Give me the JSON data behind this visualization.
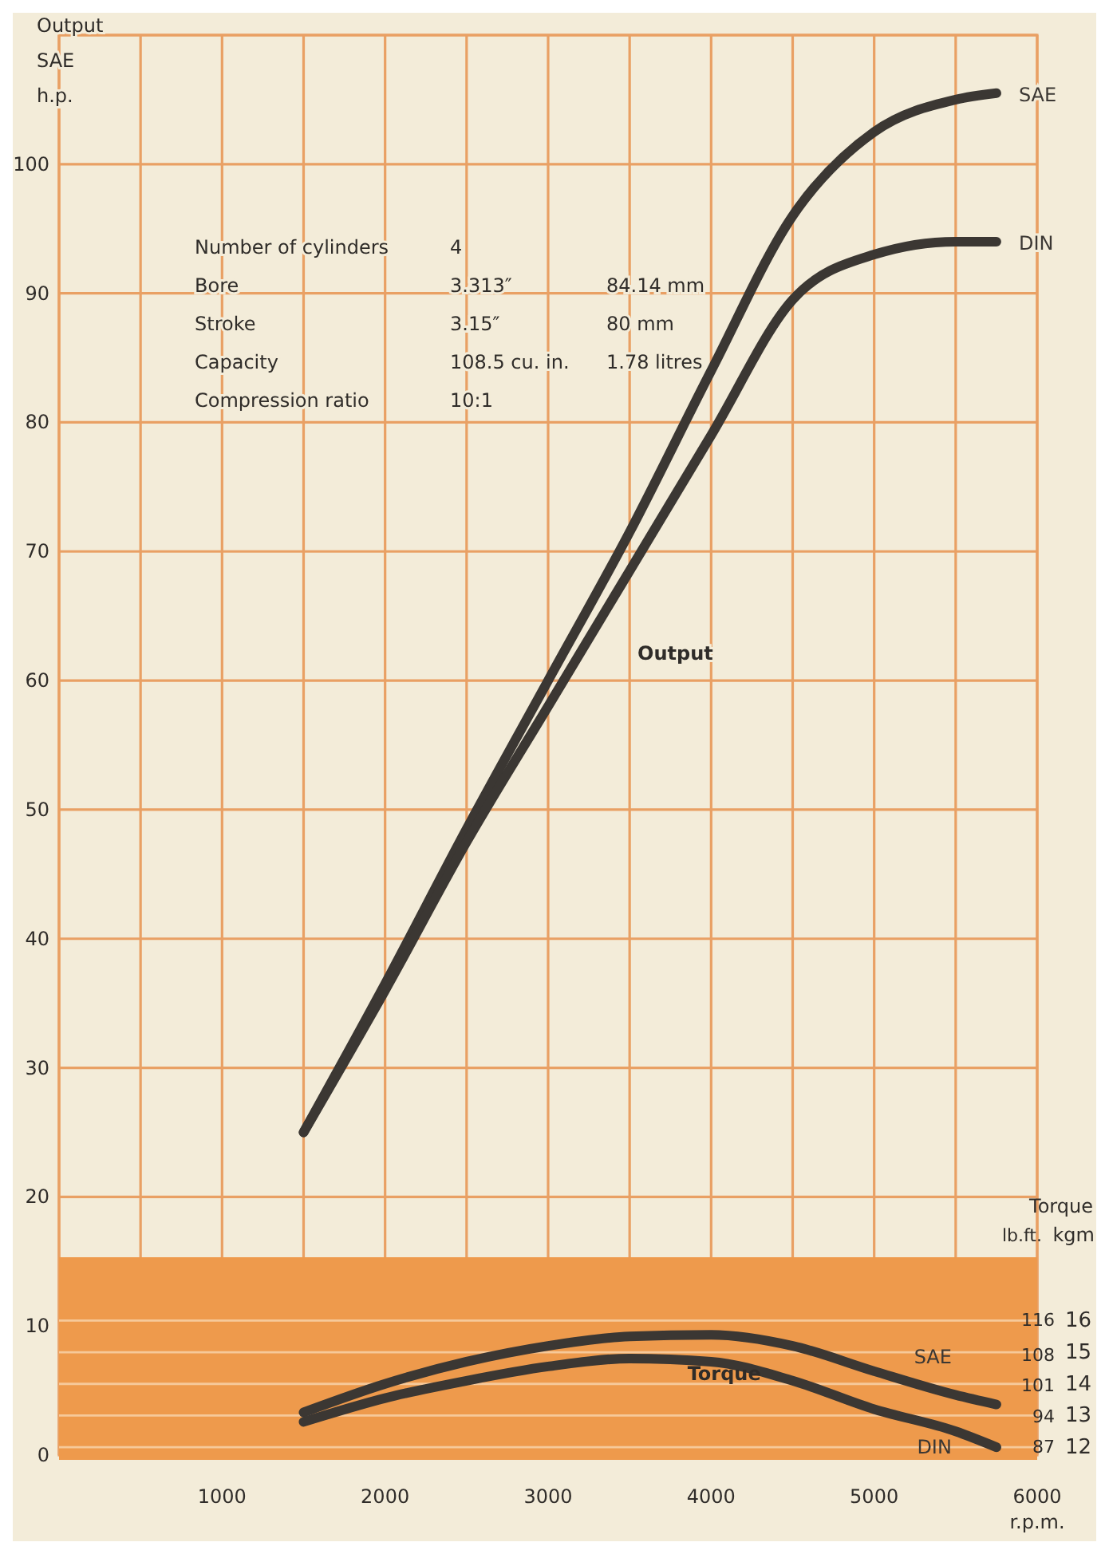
{
  "chart_data": [
    {
      "type": "line",
      "ylabel": "Output\nSAE\nh.p.",
      "xlabel": "r.p.m.",
      "xlim": [
        0,
        6000
      ],
      "ylim": [
        0,
        110
      ],
      "xticks": [
        {
          "value": 0,
          "label": null
        },
        {
          "value": 500,
          "label": null
        },
        1000,
        {
          "value": 1500,
          "label": null
        },
        2000,
        {
          "value": 2500,
          "label": null
        },
        3000,
        {
          "value": 3500,
          "label": null
        },
        4000,
        {
          "value": 4500,
          "label": null
        },
        5000,
        {
          "value": 5500,
          "label": null
        },
        6000
      ],
      "yticks": [
        0,
        10,
        20,
        30,
        40,
        50,
        60,
        70,
        80,
        90,
        100,
        {
          "value": 110,
          "label": null
        }
      ],
      "grid": true,
      "marker": "none",
      "line_style": "solid",
      "x": [
        1500,
        2000,
        2500,
        3000,
        3500,
        4000,
        4500,
        5000,
        5500,
        5750
      ],
      "series": [
        {
          "name": "SAE",
          "color": "#3b3733",
          "values": [
            25,
            36.5,
            48.5,
            60,
            71.5,
            84,
            96,
            102.5,
            105,
            105.5
          ]
        },
        {
          "name": "DIN",
          "color": "#3b3733",
          "values": [
            25,
            36,
            47.5,
            58,
            68.5,
            79,
            89.5,
            93,
            94,
            94
          ]
        }
      ],
      "annotations": [
        "Output",
        "Number of cylinders  4",
        "Bore  3.313″  84.14 mm",
        "Stroke  3.15″  80 mm",
        "Capacity  108.5 cu. in.  1.78 litres",
        "Compression ratio  10:1"
      ]
    },
    {
      "type": "line",
      "title": "Torque",
      "ylabel": "kgm",
      "y2label": "lb.ft.",
      "xlim": [
        0,
        6000
      ],
      "ylim": [
        11.6,
        18
      ],
      "yticks": [
        12,
        13,
        14,
        15,
        16
      ],
      "y2lim": [
        83.9,
        130.2
      ],
      "y2ticks": [
        87,
        94,
        101,
        108,
        116
      ],
      "tick_labels": "y",
      "grid": "y",
      "marker": "none",
      "line_style": "solid",
      "x": [
        1500,
        2000,
        2500,
        3000,
        3500,
        4000,
        4500,
        5000,
        5500,
        5750
      ],
      "series": [
        {
          "name": "SAE",
          "color": "#3b3733",
          "values": [
            13.1,
            14,
            14.7,
            15.2,
            15.5,
            15.55,
            15.2,
            14.4,
            13.65,
            13.35
          ]
        },
        {
          "name": "DIN",
          "color": "#3b3733",
          "values": [
            12.8,
            13.55,
            14.1,
            14.55,
            14.8,
            14.7,
            14.1,
            13.2,
            12.5,
            12.0
          ]
        }
      ],
      "annotations": [
        "Torque"
      ]
    }
  ]
}
